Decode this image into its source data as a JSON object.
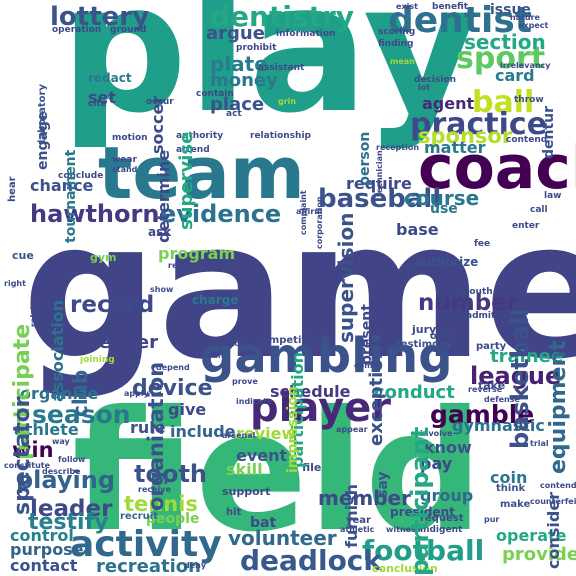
{
  "words": {
    "play": {
      "text": "play",
      "color": "#1f9e89"
    },
    "game": {
      "text": "game",
      "color": "#414487"
    },
    "field": {
      "text": "field",
      "color": "#35b779"
    },
    "team": {
      "text": "team",
      "color": "#2a788e"
    },
    "coach": {
      "text": "coach",
      "color": "#440154"
    },
    "gambling": {
      "text": "gambling",
      "color": "#3b528b"
    },
    "activity": {
      "text": "activity",
      "color": "#31688e"
    },
    "player": {
      "text": "player",
      "color": "#482878"
    },
    "dentist": {
      "text": "dentist",
      "color": "#2c728e"
    },
    "dentistry": {
      "text": "dentistry",
      "color": "#22a884"
    },
    "lottery": {
      "text": "lottery",
      "color": "#3b528b"
    },
    "sport": {
      "text": "sport",
      "color": "#5ec962"
    },
    "ball": {
      "text": "ball",
      "color": "#c2df23"
    },
    "practice": {
      "text": "practice",
      "color": "#3e4989"
    },
    "sponsor": {
      "text": "sponsor",
      "color": "#b5de2b"
    },
    "baseball": {
      "text": "baseball",
      "color": "#3b528b"
    },
    "hawthorne": {
      "text": "hawthorne",
      "color": "#443983"
    },
    "evidence": {
      "text": "evidence",
      "color": "#2c728e"
    },
    "football": {
      "text": "football",
      "color": "#1f9e89"
    },
    "deadlock": {
      "text": "deadlock",
      "color": "#38598c"
    },
    "tooth": {
      "text": "tooth",
      "color": "#3b528b"
    },
    "season": {
      "text": "season",
      "color": "#2a788e"
    },
    "league": {
      "text": "league",
      "color": "#482173"
    },
    "gamble": {
      "text": "gamble",
      "color": "#440154"
    },
    "tennis": {
      "text": "tennis",
      "color": "#a0da39"
    },
    "playing": {
      "text": "playing",
      "color": "#33638d"
    },
    "leader": {
      "text": "leader",
      "color": "#3e4989"
    },
    "testify": {
      "text": "testify",
      "color": "#27808e"
    },
    "win": {
      "text": "win",
      "color": "#440154"
    },
    "device": {
      "text": "device",
      "color": "#3b528b"
    },
    "record": {
      "text": "record",
      "color": "#3e4989"
    },
    "number": {
      "text": "number",
      "color": "#443983"
    },
    "course": {
      "text": "course",
      "color": "#2a788e"
    },
    "section": {
      "text": "section",
      "color": "#22a884"
    },
    "card": {
      "text": "card",
      "color": "#287c8e"
    },
    "agent": {
      "text": "agent",
      "color": "#482878"
    },
    "matter": {
      "text": "matter",
      "color": "#2a788e"
    },
    "chance": {
      "text": "chance",
      "color": "#3b528b"
    },
    "require": {
      "text": "require",
      "color": "#3e4989"
    },
    "conduct": {
      "text": "conduct",
      "color": "#22a884"
    },
    "volunteer": {
      "text": "volunteer",
      "color": "#31688e"
    },
    "recreation": {
      "text": "recreation",
      "color": "#2c728e"
    },
    "contact": {
      "text": "contact",
      "color": "#3b528b"
    },
    "purpose": {
      "text": "purpose",
      "color": "#33638d"
    },
    "control": {
      "text": "control",
      "color": "#27808e"
    },
    "member": {
      "text": "member",
      "color": "#3e4989"
    },
    "provide": {
      "text": "provide",
      "color": "#7ad151"
    },
    "operate": {
      "text": "operate",
      "color": "#22a884"
    },
    "coin": {
      "text": "coin",
      "color": "#2a788e"
    },
    "group": {
      "text": "group",
      "color": "#31688e"
    },
    "pay": {
      "text": "pay",
      "color": "#3e4989"
    },
    "know": {
      "text": "know",
      "color": "#3b528b"
    },
    "gymnastic": {
      "text": "gymnastic",
      "color": "#2c728e"
    },
    "trainee": {
      "text": "trainee",
      "color": "#22a884"
    },
    "schedule": {
      "text": "schedule",
      "color": "#443983"
    },
    "rule": {
      "text": "rule",
      "color": "#3b528b"
    },
    "include": {
      "text": "include",
      "color": "#33638d"
    },
    "give": {
      "text": "give",
      "color": "#3e4989"
    },
    "review": {
      "text": "review",
      "color": "#a0da39"
    },
    "event": {
      "text": "event",
      "color": "#3b528b"
    },
    "skill": {
      "text": "skill",
      "color": "#75d054"
    },
    "athlete": {
      "text": "athlete",
      "color": "#2a788e"
    },
    "organize": {
      "text": "organize",
      "color": "#2c728e"
    },
    "spectator": {
      "text": "spectator",
      "color": "#3b528b"
    },
    "club": {
      "text": "club",
      "color": "#31688e"
    },
    "pepper": {
      "text": "pepper",
      "color": "#414487"
    },
    "program": {
      "text": "program",
      "color": "#7ad151"
    },
    "place": {
      "text": "place",
      "color": "#3b528b"
    },
    "set": {
      "text": "set",
      "color": "#3e4989"
    },
    "money": {
      "text": "money",
      "color": "#2a788e"
    },
    "plate": {
      "text": "plate",
      "color": "#287c8e"
    },
    "argue": {
      "text": "argue",
      "color": "#3b528b"
    },
    "soccer": {
      "text": "soccer",
      "color": "#3e4989"
    },
    "participate": {
      "text": "participate",
      "color": "#75d054"
    },
    "participant": {
      "text": "participant",
      "color": "#22a884"
    },
    "participation": {
      "text": "participation",
      "color": "#22a884"
    },
    "equipment": {
      "text": "equipment",
      "color": "#31688e"
    },
    "basketball": {
      "text": "basketball",
      "color": "#3b528b"
    },
    "organization": {
      "text": "organization",
      "color": "#3b528b"
    },
    "supervision": {
      "text": "supervision",
      "color": "#3b528b"
    },
    "impression": {
      "text": "impression",
      "color": "#a0da39"
    },
    "exception": {
      "text": "exception",
      "color": "#3b528b"
    },
    "consider": {
      "text": "consider",
      "color": "#3b528b"
    },
    "furnish": {
      "text": "furnish",
      "color": "#3b528b"
    },
    "determine": {
      "text": "determine",
      "color": "#3e4989"
    },
    "supervise": {
      "text": "supervise",
      "color": "#22a884"
    },
    "association": {
      "text": "association",
      "color": "#2c728e"
    },
    "tournament": {
      "text": "tournament",
      "color": "#2a788e"
    },
    "engage": {
      "text": "engage",
      "color": "#3b528b"
    },
    "issue": {
      "text": "issue",
      "color": "#3b528b"
    },
    "present": {
      "text": "present",
      "color": "#3e4989"
    },
    "say": {
      "text": "say",
      "color": "#3b528b"
    },
    "base": {
      "text": "base",
      "color": "#3e4989"
    },
    "use": {
      "text": "use",
      "color": "#2a788e"
    },
    "person": {
      "text": "person",
      "color": "#2c728e"
    },
    "redact": {
      "text": "redact",
      "color": "#2a788e"
    },
    "dentur": {
      "text": "dentur",
      "color": "#3b528b"
    },
    "people": {
      "text": "people",
      "color": "#7ad151"
    },
    "bat": {
      "text": "bat",
      "color": "#3e4989"
    },
    "charge": {
      "text": "charge",
      "color": "#2a788e"
    },
    "ask": {
      "text": "ask",
      "color": "#3e4989"
    },
    "cue": {
      "text": "cue",
      "color": "#3b528b"
    },
    "authorize": {
      "text": "authorize",
      "color": "#3b528b"
    },
    "gym": {
      "text": "gym",
      "color": "#7ad151"
    },
    "president": {
      "text": "president",
      "color": "#3e4989"
    },
    "conclusion": {
      "text": "conclusion",
      "color": "#a0da39"
    },
    "competition": {
      "text": "competition",
      "color": "#3e4989"
    },
    "testimony": {
      "text": "testimony",
      "color": "#3b528b"
    },
    "jury": {
      "text": "jury",
      "color": "#3e4989"
    },
    "take": {
      "text": "take",
      "color": "#3e4989"
    },
    "offer": {
      "text": "offer",
      "color": "#3e4989"
    },
    "party": {
      "text": "party",
      "color": "#3e4989"
    },
    "recruit": {
      "text": "recruit",
      "color": "#31688e"
    },
    "support": {
      "text": "support",
      "color": "#3e4989"
    },
    "file": {
      "text": "file",
      "color": "#3e4989"
    },
    "hit": {
      "text": "hit",
      "color": "#3e4989"
    },
    "year": {
      "text": "year",
      "color": "#3e4989"
    },
    "request": {
      "text": "request",
      "color": "#3e4989"
    },
    "make": {
      "text": "make",
      "color": "#3b528b"
    },
    "think": {
      "text": "think",
      "color": "#3b528b"
    },
    "indigent": {
      "text": "indigent",
      "color": "#3e4989"
    },
    "prohibit": {
      "text": "prohibit",
      "color": "#3e4989"
    },
    "information": {
      "text": "information",
      "color": "#3e4989"
    },
    "operation": {
      "text": "operation",
      "color": "#3e4989"
    },
    "ground": {
      "text": "ground",
      "color": "#3e4989"
    },
    "assistant": {
      "text": "assistant",
      "color": "#3e4989"
    },
    "scoring": {
      "text": "scoring",
      "color": "#3e4989"
    },
    "finding": {
      "text": "finding",
      "color": "#3e4989"
    },
    "decision": {
      "text": "decision",
      "color": "#3e4989"
    },
    "relationship": {
      "text": "relationship",
      "color": "#3e4989"
    },
    "authority": {
      "text": "authority",
      "color": "#3e4989"
    },
    "motion": {
      "text": "motion",
      "color": "#3e4989"
    },
    "attend": {
      "text": "attend",
      "color": "#3e4989"
    },
    "wear": {
      "text": "wear",
      "color": "#3e4989"
    },
    "conclude": {
      "text": "conclude",
      "color": "#3e4989"
    },
    "laboratory": {
      "text": "laboratory",
      "color": "#3b528b"
    },
    "cite": {
      "text": "cite",
      "color": "#3e4989"
    },
    "occur": {
      "text": "occur",
      "color": "#3e4989"
    },
    "contain": {
      "text": "contain",
      "color": "#3e4989"
    },
    "act": {
      "text": "act",
      "color": "#3e4989"
    },
    "throw": {
      "text": "throw",
      "color": "#3e4989"
    },
    "contend": {
      "text": "contend",
      "color": "#3e4989"
    },
    "law": {
      "text": "law",
      "color": "#3e4989"
    },
    "call": {
      "text": "call",
      "color": "#3e4989"
    },
    "enter": {
      "text": "enter",
      "color": "#3e4989"
    },
    "fee": {
      "text": "fee",
      "color": "#3e4989"
    },
    "mouth": {
      "text": "mouth",
      "color": "#3e4989"
    },
    "admit": {
      "text": "admit",
      "color": "#3e4989"
    },
    "duty": {
      "text": "duty",
      "color": "#3e4989"
    },
    "reason": {
      "text": "reason",
      "color": "#3e4989"
    },
    "counsel": {
      "text": "counsel",
      "color": "#3e4989"
    },
    "director": {
      "text": "director",
      "color": "#3e4989"
    },
    "circuit": {
      "text": "circuit",
      "color": "#3e4989"
    },
    "depend": {
      "text": "depend",
      "color": "#3e4989"
    },
    "joining": {
      "text": "joining",
      "color": "#a0da39"
    },
    "prove": {
      "text": "prove",
      "color": "#3e4989"
    },
    "indicate": {
      "text": "indicate",
      "color": "#3e4989"
    },
    "apply": {
      "text": "apply",
      "color": "#3e4989"
    },
    "appear": {
      "text": "appear",
      "color": "#3e4989"
    },
    "involve": {
      "text": "involve",
      "color": "#3e4989"
    },
    "defense": {
      "text": "defense",
      "color": "#3e4989"
    },
    "reverse": {
      "text": "reverse",
      "color": "#3e4989"
    },
    "right": {
      "text": "right",
      "color": "#3e4989"
    },
    "relate": {
      "text": "relate",
      "color": "#3e4989"
    },
    "show": {
      "text": "show",
      "color": "#3e4989"
    },
    "note": {
      "text": "note",
      "color": "#3e4989"
    },
    "deny": {
      "text": "deny",
      "color": "#3e4989"
    },
    "arsenal": {
      "text": "arsenal",
      "color": "#3e4989"
    },
    "receive": {
      "text": "receive",
      "color": "#3e4989"
    },
    "follow": {
      "text": "follow",
      "color": "#3e4989"
    },
    "way": {
      "text": "way",
      "color": "#3e4989"
    },
    "describe": {
      "text": "describe",
      "color": "#3e4989"
    },
    "constitute": {
      "text": "constitute",
      "color": "#3e4989"
    },
    "benefit": {
      "text": "benefit",
      "color": "#3e4989"
    },
    "exist": {
      "text": "exist",
      "color": "#3e4989"
    },
    "nature": {
      "text": "nature",
      "color": "#3e4989"
    },
    "expect": {
      "text": "expect",
      "color": "#3e4989"
    },
    "irrelevancy": {
      "text": "irrelevancy",
      "color": "#3e4989"
    },
    "mean": {
      "text": "mean",
      "color": "#a0da39"
    },
    "technician": {
      "text": "technician",
      "color": "#3e4989"
    },
    "reception": {
      "text": "reception",
      "color": "#3e4989"
    },
    "complaint": {
      "text": "complaint",
      "color": "#3e4989"
    },
    "corporation": {
      "text": "corporation",
      "color": "#3e4989"
    },
    "affirm": {
      "text": "affirm",
      "color": "#3e4989"
    },
    "stand": {
      "text": "stand",
      "color": "#3e4989"
    },
    "hear": {
      "text": "hear",
      "color": "#3e4989"
    },
    "grin": {
      "text": "grin",
      "color": "#a0da39"
    },
    "lot": {
      "text": "lot",
      "color": "#3e4989"
    },
    "go": {
      "text": "go",
      "color": "#3e4989"
    },
    "come": {
      "text": "come",
      "color": "#3e4989"
    },
    "pur": {
      "text": "pur",
      "color": "#3e4989"
    },
    "athletic": {
      "text": "athletic",
      "color": "#3e4989"
    },
    "witness": {
      "text": "witness",
      "color": "#3e4989"
    },
    "offer2": {
      "text": "offer",
      "color": "#3e4989"
    },
    "counterfeit": {
      "text": "counterfeit",
      "color": "#3e4989"
    },
    "trial": {
      "text": "trial",
      "color": "#3e4989"
    },
    "contend2": {
      "text": "contend",
      "color": "#3e4989"
    }
  }
}
